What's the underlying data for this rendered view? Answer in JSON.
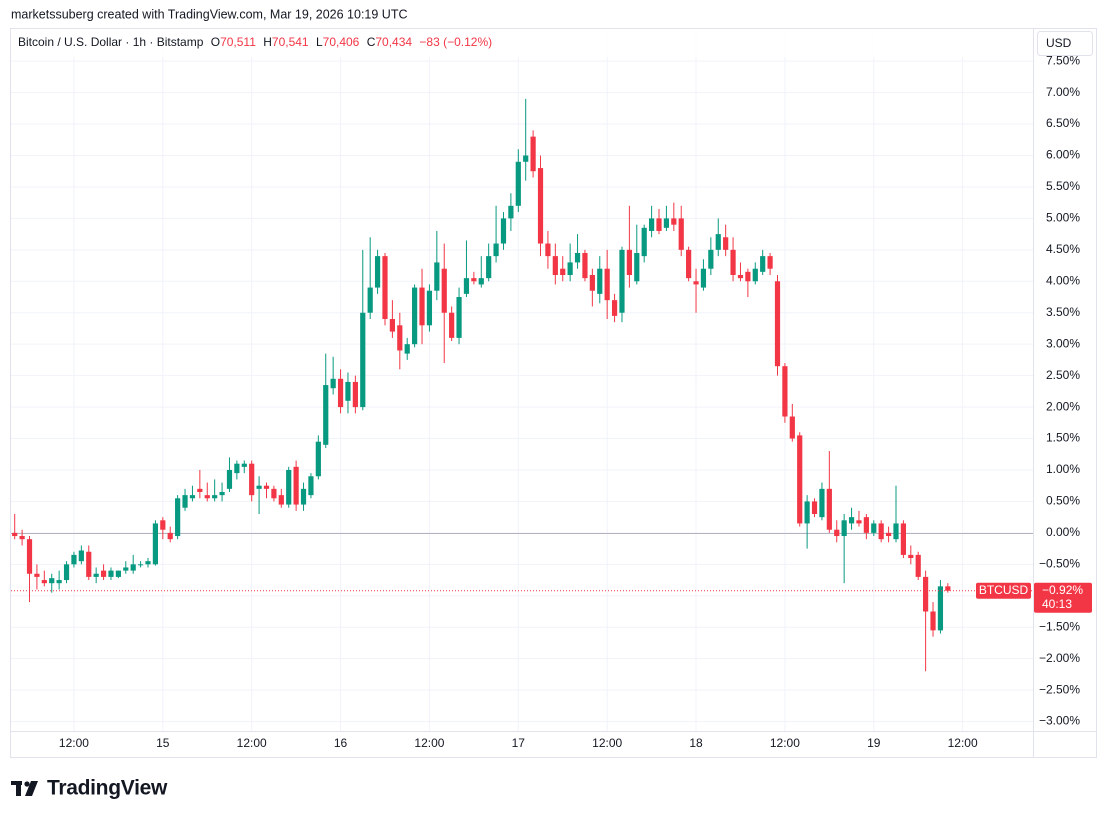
{
  "header": {
    "attribution": "marketssuberg created with TradingView.com, Mar 19, 2026 10:19 UTC"
  },
  "chart_data": {
    "type": "candlestick",
    "legend": {
      "symbol": "Bitcoin / U.S. Dollar · 1h · Bitstamp",
      "open_key": "O",
      "open": "70,511",
      "high_key": "H",
      "high": "70,541",
      "low_key": "L",
      "low": "70,406",
      "close_key": "C",
      "close": "70,434",
      "change": "−83 (−0.12%)"
    },
    "currency": "USD",
    "categories": [
      null,
      null,
      null,
      null,
      null,
      null,
      null,
      null,
      "12:00",
      null,
      null,
      null,
      null,
      null,
      null,
      null,
      null,
      null,
      null,
      null,
      "15",
      null,
      null,
      null,
      null,
      null,
      null,
      null,
      null,
      null,
      null,
      null,
      "12:00",
      null,
      null,
      null,
      null,
      null,
      null,
      null,
      null,
      null,
      null,
      null,
      "16",
      null,
      null,
      null,
      null,
      null,
      null,
      null,
      null,
      null,
      null,
      null,
      "12:00",
      null,
      null,
      null,
      null,
      null,
      null,
      null,
      null,
      null,
      null,
      null,
      "17",
      null,
      null,
      null,
      null,
      null,
      null,
      null,
      null,
      null,
      null,
      null,
      "12:00",
      null,
      null,
      null,
      null,
      null,
      null,
      null,
      null,
      null,
      null,
      null,
      "18",
      null,
      null,
      null,
      null,
      null,
      null,
      null,
      null,
      null,
      null,
      null,
      "12:00",
      null,
      null,
      null,
      null,
      null,
      null,
      null,
      null,
      null,
      null,
      null,
      "19",
      null,
      null,
      null,
      null,
      null,
      null,
      null,
      null,
      null,
      null,
      null,
      "12:00",
      null,
      null,
      null,
      null,
      null,
      null,
      null,
      null,
      null
    ],
    "open": [
      0.0,
      -0.05,
      -0.1,
      -0.65,
      -0.75,
      -0.8,
      -0.8,
      -0.75,
      -0.5,
      -0.45,
      -0.3,
      -0.7,
      -0.6,
      -0.7,
      -0.7,
      -0.6,
      -0.6,
      -0.5,
      -0.5,
      -0.5,
      0.2,
      0.0,
      -0.05,
      0.4,
      0.55,
      0.7,
      0.6,
      0.55,
      0.6,
      0.7,
      0.95,
      1.05,
      1.1,
      0.7,
      0.75,
      0.7,
      0.6,
      0.45,
      1.05,
      0.45,
      0.6,
      0.9,
      1.4,
      2.3,
      2.45,
      2.1,
      2.4,
      2.0,
      3.5,
      3.9,
      4.4,
      3.4,
      3.3,
      2.85,
      3.0,
      3.9,
      3.3,
      3.85,
      4.2,
      3.5,
      3.1,
      3.8,
      4.05,
      3.95,
      4.05,
      4.4,
      4.6,
      5.0,
      5.2,
      5.9,
      6.3,
      5.8,
      4.6,
      4.4,
      4.2,
      4.1,
      4.3,
      4.45,
      4.1,
      3.8,
      4.2,
      3.7,
      3.5,
      4.5,
      4.0,
      4.4,
      4.8,
      5.0,
      4.85,
      5.0,
      5.0,
      4.5,
      4.0,
      3.9,
      4.2,
      4.5,
      4.7,
      4.5,
      4.1,
      4.15,
      4.0,
      4.15,
      4.4,
      4.0,
      2.65,
      1.85,
      1.55,
      0.15,
      0.5,
      0.25,
      0.7,
      0.05,
      -0.05,
      0.15,
      0.2,
      0.25,
      0.0,
      0.15,
      0.0,
      -0.1,
      0.15,
      -0.35,
      -0.35,
      -0.7,
      -1.25,
      -1.55,
      -0.85,
      null,
      null,
      null,
      null,
      null,
      null,
      null,
      null,
      null,
      null,
      null
    ],
    "high": [
      0.3,
      0.05,
      -0.05,
      -0.5,
      -0.6,
      -0.65,
      -0.6,
      -0.45,
      -0.3,
      -0.2,
      -0.2,
      -0.55,
      -0.5,
      -0.55,
      -0.6,
      -0.45,
      -0.35,
      -0.45,
      -0.4,
      0.2,
      0.25,
      0.1,
      0.6,
      0.7,
      0.75,
      1.0,
      0.8,
      0.85,
      0.8,
      1.2,
      1.15,
      1.15,
      1.15,
      0.9,
      0.8,
      0.75,
      0.7,
      1.05,
      1.15,
      0.8,
      0.95,
      1.55,
      2.85,
      2.8,
      2.6,
      2.55,
      2.5,
      4.5,
      4.7,
      4.5,
      4.45,
      3.7,
      3.5,
      3.1,
      3.95,
      4.2,
      3.95,
      4.8,
      4.6,
      3.6,
      3.9,
      4.65,
      4.15,
      4.4,
      4.6,
      5.2,
      5.1,
      5.4,
      6.1,
      6.9,
      6.4,
      6.0,
      4.8,
      4.6,
      4.4,
      4.6,
      4.75,
      4.5,
      4.2,
      4.4,
      4.5,
      3.8,
      4.55,
      5.2,
      4.9,
      4.9,
      5.2,
      5.15,
      5.2,
      5.25,
      5.2,
      4.55,
      4.2,
      4.35,
      4.7,
      5.0,
      4.9,
      4.7,
      4.3,
      4.2,
      4.3,
      4.5,
      4.45,
      4.1,
      2.7,
      2.05,
      1.6,
      0.6,
      0.55,
      0.8,
      1.3,
      0.2,
      0.3,
      0.4,
      0.35,
      0.3,
      0.2,
      0.2,
      0.1,
      0.75,
      0.2,
      -0.2,
      -0.3,
      -0.6,
      -1.1,
      -0.75,
      -0.8,
      null,
      null,
      null,
      null,
      null,
      null,
      null,
      null,
      null,
      null,
      null
    ],
    "low": [
      -0.1,
      -0.2,
      -1.1,
      -0.9,
      -0.85,
      -0.95,
      -0.9,
      -0.8,
      -0.55,
      -0.5,
      -0.75,
      -0.8,
      -0.75,
      -0.75,
      -0.72,
      -0.65,
      -0.65,
      -0.55,
      -0.55,
      -0.52,
      -0.1,
      -0.15,
      -0.1,
      0.35,
      0.5,
      0.55,
      0.5,
      0.5,
      0.5,
      0.65,
      0.85,
      0.95,
      0.5,
      0.3,
      0.55,
      0.5,
      0.4,
      0.4,
      0.35,
      0.35,
      0.55,
      0.85,
      1.35,
      2.2,
      1.9,
      1.9,
      1.9,
      1.95,
      3.4,
      3.8,
      3.3,
      3.1,
      2.6,
      2.75,
      2.95,
      3.0,
      3.2,
      3.7,
      2.7,
      3.05,
      3.0,
      3.75,
      3.95,
      3.9,
      4.0,
      4.3,
      4.5,
      4.8,
      5.1,
      5.6,
      5.65,
      4.4,
      4.2,
      3.95,
      4.0,
      4.0,
      4.2,
      4.0,
      3.6,
      3.65,
      3.4,
      3.35,
      3.35,
      3.9,
      3.95,
      4.3,
      4.7,
      4.75,
      4.8,
      4.8,
      4.4,
      4.0,
      3.5,
      3.85,
      4.1,
      4.4,
      4.4,
      4.0,
      4.0,
      3.75,
      3.95,
      4.1,
      4.1,
      2.5,
      1.75,
      1.45,
      0.1,
      -0.25,
      0.25,
      0.2,
      0.0,
      -0.15,
      -0.8,
      0.05,
      0.1,
      -0.1,
      -0.05,
      -0.15,
      -0.15,
      -0.15,
      -0.4,
      -0.5,
      -0.75,
      -2.2,
      -1.65,
      -1.6,
      -0.95,
      null,
      null,
      null,
      null,
      null,
      null,
      null,
      null,
      null,
      null,
      null
    ],
    "close": [
      -0.05,
      -0.1,
      -0.65,
      -0.7,
      -0.8,
      -0.72,
      -0.75,
      -0.5,
      -0.35,
      -0.28,
      -0.7,
      -0.65,
      -0.7,
      -0.6,
      -0.6,
      -0.55,
      -0.5,
      -0.5,
      -0.45,
      0.15,
      0.05,
      -0.1,
      0.55,
      0.6,
      0.6,
      0.65,
      0.55,
      0.6,
      0.65,
      1.0,
      1.1,
      1.1,
      0.6,
      0.75,
      0.7,
      0.55,
      0.45,
      1.0,
      0.45,
      0.7,
      0.9,
      1.45,
      2.35,
      2.45,
      2.0,
      2.4,
      2.0,
      3.5,
      3.9,
      4.4,
      3.4,
      3.2,
      2.9,
      3.0,
      3.9,
      3.3,
      3.85,
      4.3,
      3.5,
      3.1,
      3.75,
      4.05,
      4.0,
      4.05,
      4.4,
      4.6,
      5.0,
      5.2,
      5.9,
      6.0,
      5.75,
      4.6,
      4.4,
      4.1,
      4.1,
      4.3,
      4.45,
      4.05,
      3.85,
      4.2,
      3.7,
      3.45,
      4.5,
      4.1,
      4.45,
      4.85,
      5.0,
      4.8,
      5.0,
      4.9,
      4.5,
      4.05,
      3.95,
      4.2,
      4.5,
      4.75,
      4.5,
      4.1,
      4.05,
      4.0,
      4.2,
      4.4,
      4.2,
      2.65,
      1.85,
      1.5,
      0.15,
      0.5,
      0.3,
      0.7,
      0.05,
      -0.05,
      0.2,
      0.25,
      0.15,
      0.0,
      0.15,
      -0.1,
      -0.05,
      0.15,
      -0.35,
      -0.4,
      -0.7,
      -1.25,
      -1.55,
      -0.85,
      -0.92,
      null,
      null,
      null,
      null,
      null,
      null,
      null,
      null,
      null,
      null,
      null
    ],
    "up_color": "#089981",
    "down_color": "#f23645",
    "ylim": [
      -3.15,
      7.55
    ],
    "yticks": [
      {
        "value": -3,
        "label": "−3.00%"
      },
      {
        "value": -2.5,
        "label": "−2.50%"
      },
      {
        "value": -2,
        "label": "−2.00%"
      },
      {
        "value": -1.5,
        "label": "−1.50%"
      },
      {
        "value": -1,
        "label": "−1.00%"
      },
      {
        "value": -0.5,
        "label": "−0.50%"
      },
      {
        "value": 0,
        "label": "0.00%"
      },
      {
        "value": 0.5,
        "label": "0.50%"
      },
      {
        "value": 1,
        "label": "1.00%"
      },
      {
        "value": 1.5,
        "label": "1.50%"
      },
      {
        "value": 2,
        "label": "2.00%"
      },
      {
        "value": 2.5,
        "label": "2.50%"
      },
      {
        "value": 3,
        "label": "3.00%"
      },
      {
        "value": 3.5,
        "label": "3.50%"
      },
      {
        "value": 4,
        "label": "4.00%"
      },
      {
        "value": 4.5,
        "label": "4.50%"
      },
      {
        "value": 5,
        "label": "5.00%"
      },
      {
        "value": 5.5,
        "label": "5.50%"
      },
      {
        "value": 6,
        "label": "6.00%"
      },
      {
        "value": 6.5,
        "label": "6.50%"
      },
      {
        "value": 7,
        "label": "7.00%"
      },
      {
        "value": 7.5,
        "label": "7.50%"
      }
    ],
    "baseline": 0,
    "grid": true,
    "last_price": {
      "symbol": "BTCUSD",
      "value_label": "−0.92%",
      "countdown": "40:13"
    }
  },
  "footer": {
    "logo": "TradingView"
  }
}
